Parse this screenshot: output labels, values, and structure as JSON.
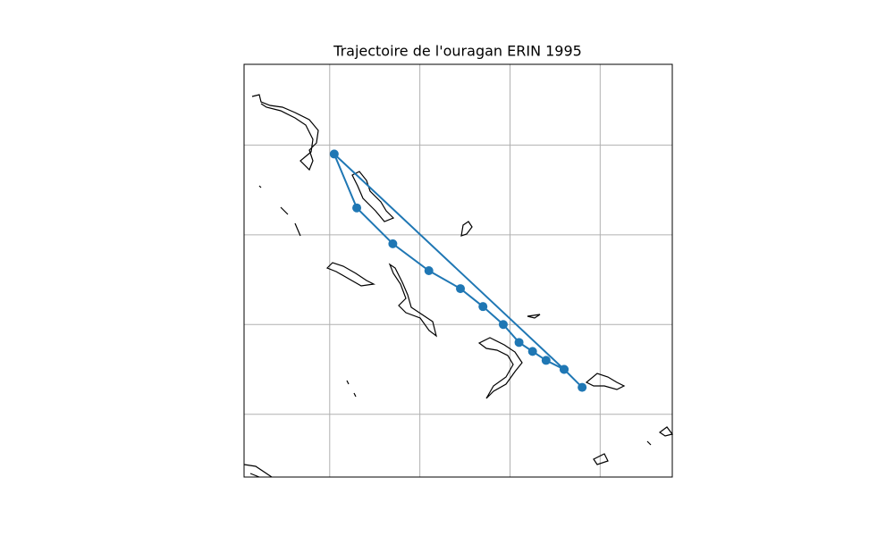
{
  "chart_data": {
    "type": "line",
    "title": "Trajectoire de l'ouragan ERIN 1995",
    "x": [
      -74.4,
      -74.8,
      -75.2,
      -75.5,
      -75.8,
      -76.15,
      -76.6,
      -77.1,
      -77.8,
      -78.6,
      -79.4,
      -79.9,
      -74.8
    ],
    "values": [
      22.6,
      23.0,
      23.2,
      23.4,
      23.6,
      24.0,
      24.4,
      24.8,
      25.2,
      25.8,
      26.6,
      27.8,
      23.0
    ],
    "color": "#1f77b4",
    "xlim": [
      -81.9,
      -72.4
    ],
    "ylim": [
      20.6,
      29.8
    ],
    "xticks": [
      -80,
      -78,
      -76,
      -74
    ],
    "yticks": [
      28,
      26,
      24,
      22
    ],
    "grid": true
  }
}
